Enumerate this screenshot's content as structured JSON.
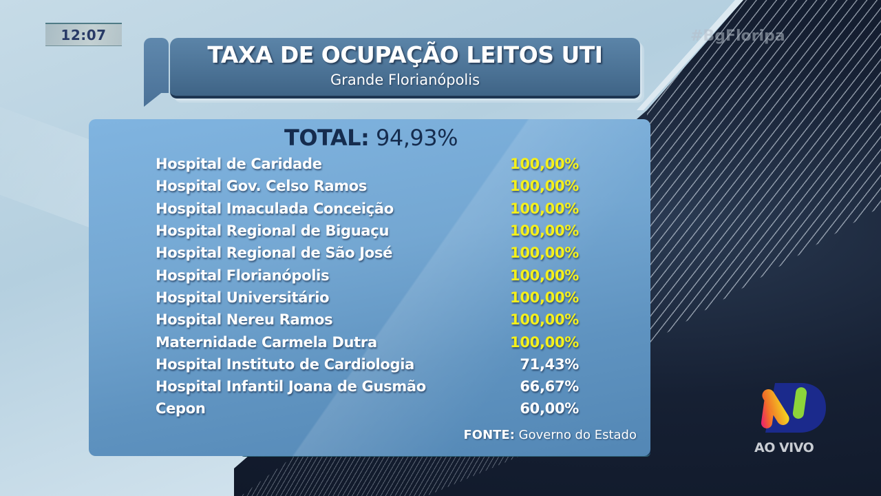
{
  "overlay": {
    "clock": "12:07",
    "hashtag": "#BgFloripa",
    "live_label": "AO VIVO",
    "logo_icon": "broadcaster-n-logo"
  },
  "header": {
    "title": "TAXA DE OCUPAÇÃO LEITOS UTI",
    "subtitle": "Grande Florianópolis"
  },
  "summary": {
    "total_label": "TOTAL:",
    "total_value": "94,93%"
  },
  "hospitals": [
    {
      "name": "Hospital de Caridade",
      "value": "100,00%",
      "highlight": true
    },
    {
      "name": "Hospital Gov. Celso Ramos",
      "value": "100,00%",
      "highlight": true
    },
    {
      "name": "Hospital Imaculada Conceição",
      "value": "100,00%",
      "highlight": true
    },
    {
      "name": "Hospital Regional de Biguaçu",
      "value": "100,00%",
      "highlight": true
    },
    {
      "name": "Hospital Regional de São José",
      "value": "100,00%",
      "highlight": true
    },
    {
      "name": "Hospital Florianópolis",
      "value": "100,00%",
      "highlight": true
    },
    {
      "name": "Hospital Universitário",
      "value": "100,00%",
      "highlight": true
    },
    {
      "name": "Hospital Nereu Ramos",
      "value": "100,00%",
      "highlight": true
    },
    {
      "name": "Maternidade Carmela Dutra",
      "value": "100,00%",
      "highlight": true
    },
    {
      "name": "Hospital Instituto de Cardiologia",
      "value": "71,43%",
      "highlight": false
    },
    {
      "name": "Hospital Infantil Joana de Gusmão",
      "value": "66,67%",
      "highlight": false
    },
    {
      "name": "Cepon",
      "value": "60,00%",
      "highlight": false
    }
  ],
  "source": {
    "label": "FONTE:",
    "value": "Governo do Estado"
  },
  "colors": {
    "highlight_value": "#f4f01c",
    "normal_value": "#ffffff",
    "total_text": "#152c4e",
    "box_blue": "#74a7d2",
    "header_blue": "#4c7396"
  }
}
